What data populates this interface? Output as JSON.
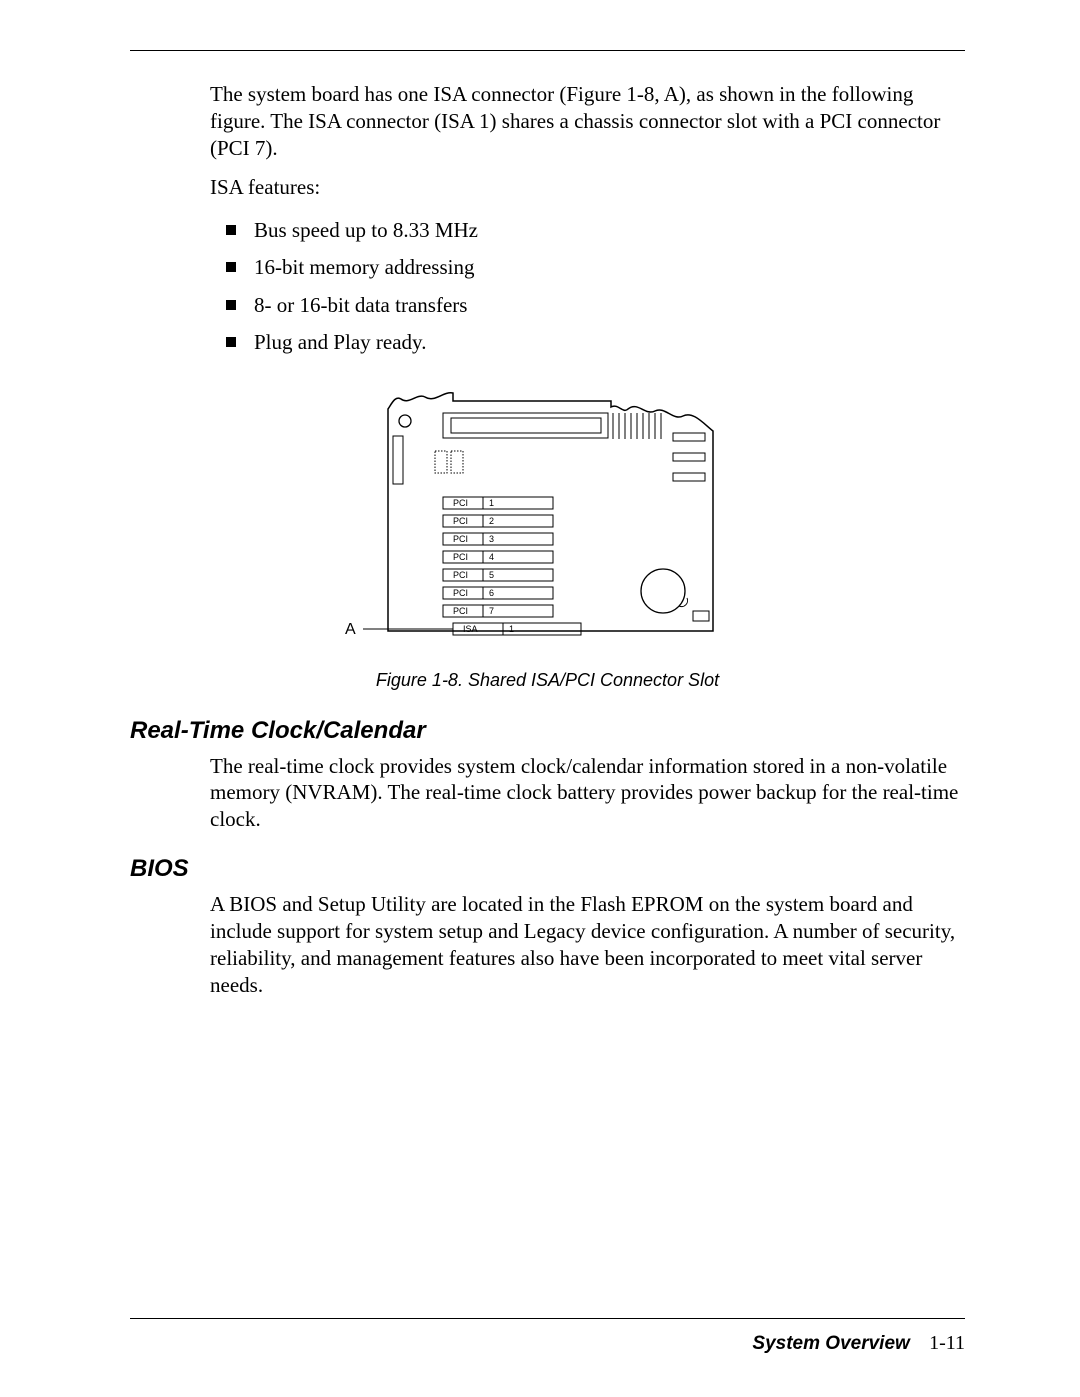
{
  "intro": {
    "para1": "The system board has one ISA connector (Figure 1-8, A), as shown in the following figure. The ISA connector (ISA 1) shares a chassis connector slot with a PCI connector (PCI 7).",
    "featuresLabel": "ISA features:",
    "bullets": [
      "Bus speed up to 8.33 MHz",
      "16-bit memory addressing",
      "8- or 16-bit data transfers",
      "Plug and Play ready."
    ]
  },
  "figure": {
    "caption": "Figure 1-8.  Shared ISA/PCI Connector Slot",
    "labelA": "A",
    "slots": [
      {
        "name": "PCI",
        "num": "1"
      },
      {
        "name": "PCI",
        "num": "2"
      },
      {
        "name": "PCI",
        "num": "3"
      },
      {
        "name": "PCI",
        "num": "4"
      },
      {
        "name": "PCI",
        "num": "5"
      },
      {
        "name": "PCI",
        "num": "6"
      },
      {
        "name": "PCI",
        "num": "7"
      },
      {
        "name": "ISA",
        "num": "1"
      }
    ],
    "colors": {
      "stroke": "#000000",
      "fill": "#ffffff"
    }
  },
  "sections": {
    "rtc": {
      "heading": "Real-Time Clock/Calendar",
      "body": "The real-time clock provides system clock/calendar information stored in a non-volatile memory (NVRAM). The real-time clock battery provides power backup for the real-time clock."
    },
    "bios": {
      "heading": "BIOS",
      "body": "A BIOS and Setup Utility are located in the Flash EPROM on the system board and include support for system setup and Legacy device configuration. A number of security, reliability, and management features also have been incorporated to meet vital server needs."
    }
  },
  "footer": {
    "title": "System Overview",
    "page": "1-11"
  }
}
